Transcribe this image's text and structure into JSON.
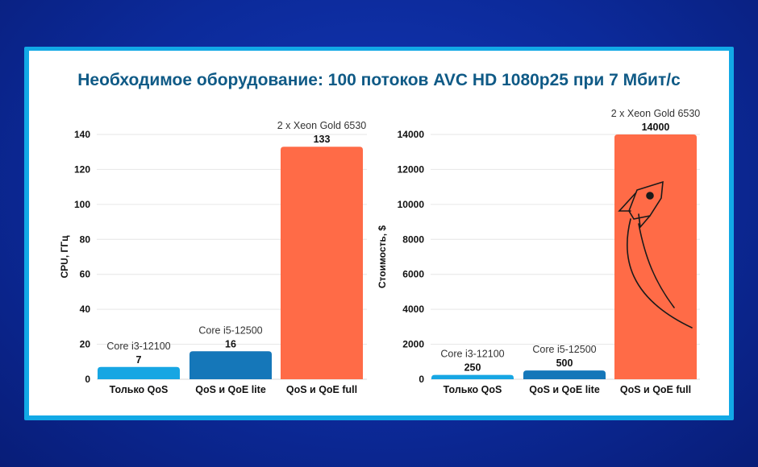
{
  "title": "Необходимое оборудование:  100 потоков AVC HD 1080p25 при 7 Мбит/с",
  "colors": {
    "background": "#0c2a9a",
    "frame": "#12a9e6",
    "title": "#0f5a86",
    "bar_light_blue": "#17a6e3",
    "bar_blue": "#1577b9",
    "bar_orange": "#ff6b47"
  },
  "icons": {
    "rocket": "rocket-icon"
  },
  "chart_data": [
    {
      "type": "bar",
      "title": "",
      "xlabel": "",
      "ylabel": "CPU, ГГц",
      "ylim": [
        0,
        140
      ],
      "yticks": [
        0,
        20,
        40,
        60,
        80,
        100,
        120,
        140
      ],
      "categories": [
        "Только QoS",
        "QoS и QoE lite",
        "QoS и QoE full"
      ],
      "values": [
        7,
        16,
        133
      ],
      "value_labels": [
        "7",
        "16",
        "133"
      ],
      "annotations": [
        "Core i3-12100",
        "Core i5-12500",
        "2 x Xeon Gold 6530"
      ],
      "bar_colors": [
        "#17a6e3",
        "#1577b9",
        "#ff6b47"
      ],
      "grid": true
    },
    {
      "type": "bar",
      "title": "",
      "xlabel": "",
      "ylabel": "Стоимость, $",
      "ylim": [
        0,
        14000
      ],
      "yticks": [
        0,
        2000,
        4000,
        6000,
        8000,
        10000,
        12000,
        14000
      ],
      "categories": [
        "Только QoS",
        "QoS и QoE lite",
        "QoS и QoE full"
      ],
      "values": [
        250,
        500,
        14000
      ],
      "value_labels": [
        "250",
        "500",
        "14000"
      ],
      "annotations": [
        "Core i3-12100",
        "Core i5-12500",
        "2 x Xeon Gold 6530"
      ],
      "bar_colors": [
        "#17a6e3",
        "#1577b9",
        "#ff6b47"
      ],
      "grid": true
    }
  ]
}
